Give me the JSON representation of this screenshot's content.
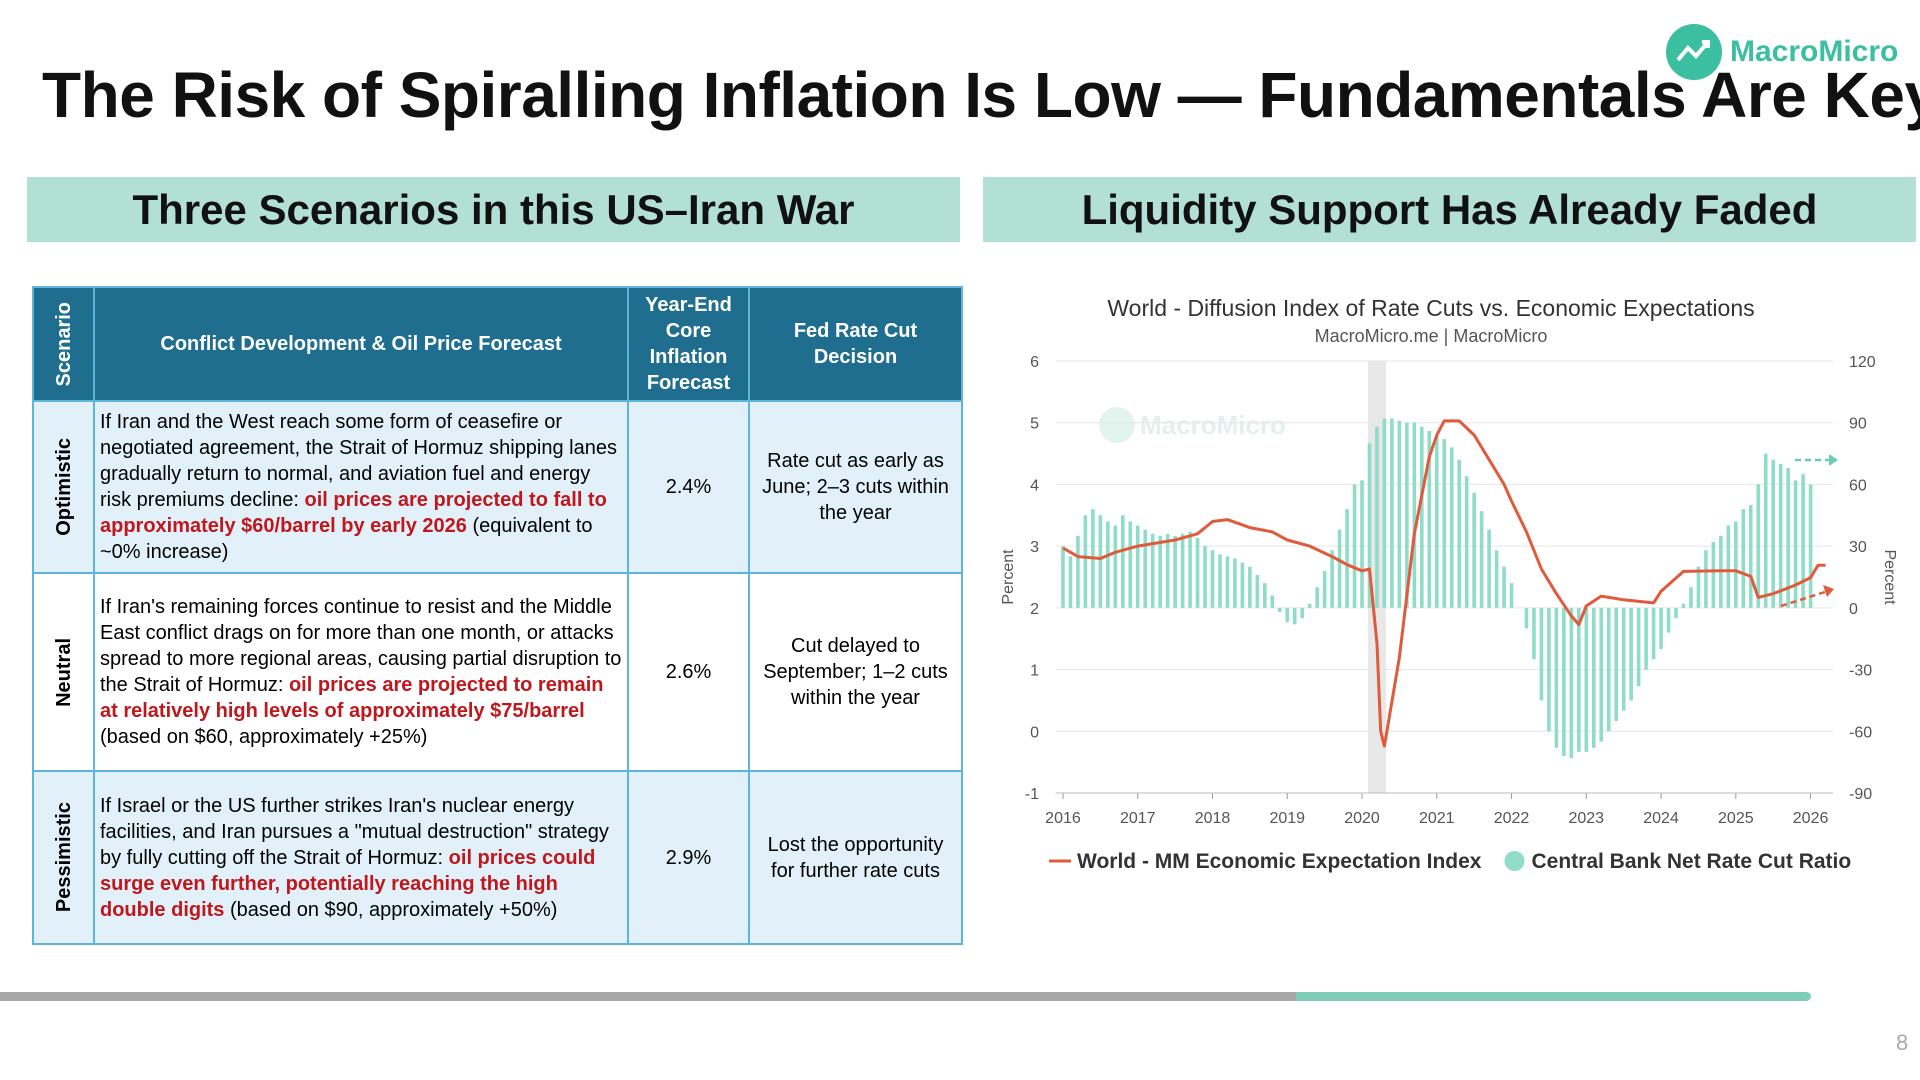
{
  "header": {
    "title": "The Risk of Spiralling Inflation Is Low — Fundamentals Are Key",
    "logo": "MacroMicro",
    "page_number": "8"
  },
  "left_panel": {
    "title": "Three Scenarios in this US–Iran War",
    "table": {
      "columns": [
        "Scenario",
        "Conflict Development & Oil Price Forecast",
        "Year-End Core Inflation Forecast",
        "Fed Rate Cut Decision"
      ],
      "rows": [
        {
          "scenario": "Optimistic",
          "conflict": {
            "before": "If Iran and the West reach some form of ceasefire or negotiated agreement, the Strait of Hormuz shipping lanes gradually return to normal, and aviation fuel and energy risk premiums decline: ",
            "highlight": "oil prices are projected to fall to approximately $60/barrel by early 2026",
            "after": " (equivalent to ~0% increase)"
          },
          "inflation": "2.4%",
          "fed": "Rate cut as early as June; 2–3 cuts within the year"
        },
        {
          "scenario": "Neutral",
          "conflict": {
            "before": "If Iran's remaining forces continue to resist and the Middle East conflict drags on for more than one month, or attacks spread to more regional areas, causing partial disruption to the Strait of Hormuz: ",
            "highlight": "oil prices are projected to remain at relatively high levels of approximately $75/barrel",
            "after": " (based on $60, approximately +25%)"
          },
          "inflation": "2.6%",
          "fed": "Cut delayed to September; 1–2 cuts within the year"
        },
        {
          "scenario": "Pessimistic",
          "conflict": {
            "before": "If Israel or the US further strikes Iran's nuclear energy facilities, and Iran pursues a \"mutual destruction\" strategy by fully cutting off the Strait of Hormuz: ",
            "highlight": "oil prices could surge even further, potentially reaching the high double digits",
            "after": " (based on $90, approximately +50%)"
          },
          "inflation": "2.9%",
          "fed": "Lost the opportunity for further rate cuts"
        }
      ]
    }
  },
  "right_panel": {
    "title": "Liquidity Support Has Already Faded"
  },
  "chart_data": {
    "type": "bar-line",
    "title": "World - Diffusion Index of Rate Cuts vs. Economic Expectations",
    "subtitle": "MacroMicro.me | MacroMicro",
    "watermark": "MacroMicro",
    "ylabel": "Percent",
    "y2label": "Percent",
    "xlim": [
      2015.9,
      2026.3
    ],
    "xticks": [
      2016,
      2017,
      2018,
      2019,
      2020,
      2021,
      2022,
      2023,
      2024,
      2025,
      2026
    ],
    "ylim": [
      -1,
      6
    ],
    "yticks": [
      -1,
      0,
      1,
      2,
      3,
      4,
      5,
      6
    ],
    "y2lim": [
      -90,
      120
    ],
    "y2ticks": [
      -90,
      -60,
      -30,
      0,
      30,
      60,
      90,
      120
    ],
    "grid": true,
    "series": [
      {
        "name": "World - MM Economic Expectation Index",
        "type": "line",
        "axis": "y",
        "color": "#e05a3c",
        "x": [
          2016.0,
          2016.2,
          2016.5,
          2016.7,
          2017.0,
          2017.5,
          2017.8,
          2018.0,
          2018.2,
          2018.5,
          2018.8,
          2019.0,
          2019.3,
          2019.6,
          2019.8,
          2020.0,
          2020.1,
          2020.2,
          2020.25,
          2020.3,
          2020.5,
          2020.7,
          2020.9,
          2021.0,
          2021.1,
          2021.3,
          2021.5,
          2021.7,
          2021.9,
          2022.0,
          2022.2,
          2022.4,
          2022.6,
          2022.8,
          2022.9,
          2023.0,
          2023.2,
          2023.5,
          2023.9,
          2024.0,
          2024.3,
          2024.8,
          2025.0,
          2025.2,
          2025.3,
          2025.5,
          2025.8,
          2026.0,
          2026.1,
          2026.2
        ],
        "values": [
          2.97,
          2.83,
          2.8,
          2.9,
          3.0,
          3.1,
          3.2,
          3.4,
          3.43,
          3.3,
          3.23,
          3.1,
          3.0,
          2.83,
          2.7,
          2.6,
          2.63,
          1.42,
          0,
          -0.24,
          1.2,
          3.2,
          4.45,
          4.8,
          5.03,
          5.03,
          4.8,
          4.4,
          4.0,
          3.73,
          3.23,
          2.63,
          2.23,
          1.87,
          1.73,
          2.03,
          2.19,
          2.13,
          2.08,
          2.27,
          2.59,
          2.6,
          2.6,
          2.51,
          2.17,
          2.23,
          2.37,
          2.49,
          2.69,
          2.69
        ]
      },
      {
        "name": "Central Bank Net Rate Cut Ratio",
        "type": "bar",
        "axis": "y2",
        "color": "#8fdcc8",
        "x": [
          2016,
          2016.1,
          2016.2,
          2016.3,
          2016.4,
          2016.5,
          2016.6,
          2016.7,
          2016.8,
          2016.9,
          2017,
          2017.1,
          2017.2,
          2017.3,
          2017.4,
          2017.5,
          2017.6,
          2017.7,
          2017.8,
          2017.9,
          2018,
          2018.1,
          2018.2,
          2018.3,
          2018.4,
          2018.5,
          2018.6,
          2018.7,
          2018.8,
          2018.9,
          2019,
          2019.1,
          2019.2,
          2019.3,
          2019.4,
          2019.5,
          2019.6,
          2019.7,
          2019.8,
          2019.9,
          2020,
          2020.1,
          2020.2,
          2020.3,
          2020.4,
          2020.5,
          2020.6,
          2020.7,
          2020.8,
          2020.9,
          2021,
          2021.1,
          2021.2,
          2021.3,
          2021.4,
          2021.5,
          2021.6,
          2021.7,
          2021.8,
          2021.9,
          2022,
          2022.1,
          2022.2,
          2022.3,
          2022.4,
          2022.5,
          2022.6,
          2022.7,
          2022.8,
          2022.9,
          2023,
          2023.1,
          2023.2,
          2023.3,
          2023.4,
          2023.5,
          2023.6,
          2023.7,
          2023.8,
          2023.9,
          2024,
          2024.1,
          2024.2,
          2024.3,
          2024.4,
          2024.5,
          2024.6,
          2024.7,
          2024.8,
          2024.9,
          2025,
          2025.1,
          2025.2,
          2025.3,
          2025.4,
          2025.5,
          2025.6,
          2025.7,
          2025.8,
          2025.9,
          2026
        ],
        "values": [
          30,
          25,
          35,
          45,
          48,
          45,
          42,
          40,
          45,
          42,
          40,
          38,
          36,
          35,
          36,
          35,
          36,
          37,
          34,
          30,
          28,
          26,
          25,
          24,
          22,
          20,
          16,
          12,
          6,
          -2,
          -7,
          -8,
          -5,
          2,
          10,
          18,
          28,
          38,
          48,
          60,
          62,
          80,
          88,
          92,
          92,
          91,
          90,
          90,
          88,
          86,
          84,
          82,
          78,
          72,
          64,
          56,
          47,
          38,
          28,
          20,
          12,
          0,
          -10,
          -25,
          -45,
          -60,
          -68,
          -72,
          -73,
          -70,
          -70,
          -68,
          -65,
          -60,
          -55,
          -50,
          -45,
          -38,
          -30,
          -25,
          -20,
          -12,
          -5,
          2,
          10,
          20,
          28,
          32,
          35,
          40,
          42,
          48,
          50,
          60,
          75,
          72,
          70,
          68,
          62,
          65,
          60
        ]
      }
    ]
  }
}
